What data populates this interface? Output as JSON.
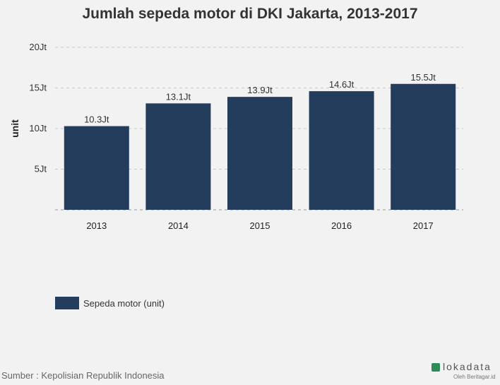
{
  "chart_data": {
    "type": "bar",
    "title": "Jumlah sepeda motor di DKI Jakarta, 2013-2017",
    "ylabel": "unit",
    "xlabel": "",
    "categories": [
      "2013",
      "2014",
      "2015",
      "2016",
      "2017"
    ],
    "series": [
      {
        "name": "Sepeda motor (unit)",
        "values": [
          10.3,
          13.1,
          13.9,
          14.6,
          15.5
        ],
        "data_labels": [
          "10.3Jt",
          "13.1Jt",
          "13.9Jt",
          "14.6Jt",
          "15.5Jt"
        ],
        "color": "#243d5c"
      }
    ],
    "ylim": [
      0,
      20
    ],
    "yticks": [
      5,
      10,
      15,
      20
    ],
    "ytick_labels": [
      "5Jt",
      "10Jt",
      "15Jt",
      "20Jt"
    ],
    "grid": "horizontal-dashed",
    "legend_position": "bottom-left"
  },
  "source": "Sumber : Kepolisian Republik Indonesia",
  "brand": {
    "name": "lokadata",
    "subtitle": "Oleh Beritagar.id"
  },
  "colors": {
    "bar": "#243d5c",
    "grid": "#c8c8c8",
    "background": "#f2f2f2"
  }
}
